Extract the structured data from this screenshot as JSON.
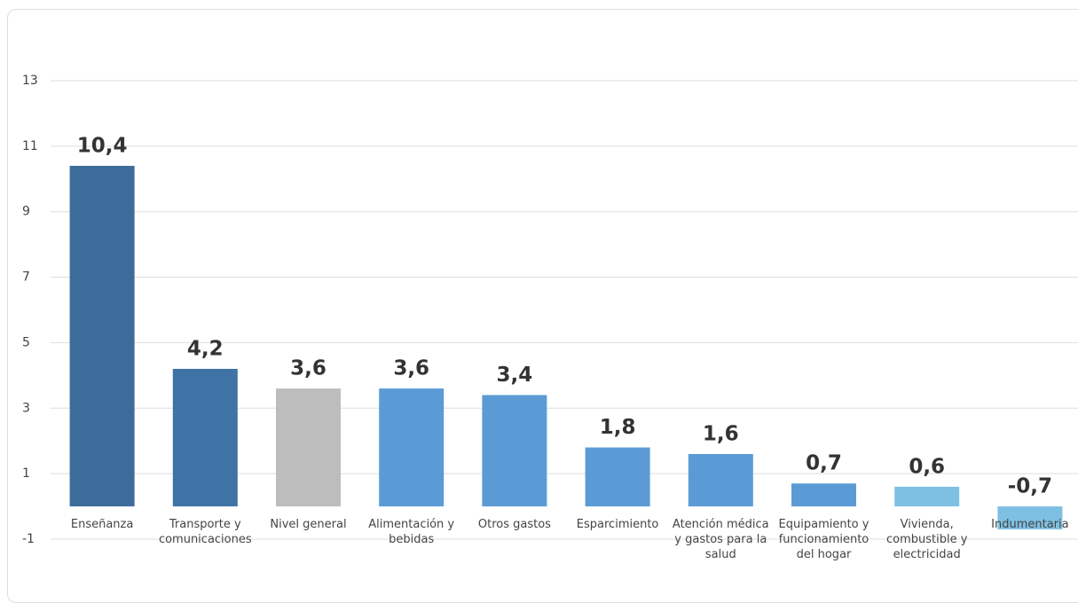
{
  "chart_data": {
    "type": "bar",
    "categories": [
      "Enseñanza",
      "Transporte y comunicaciones",
      "Nivel general",
      "Alimentación y bebidas",
      "Otros gastos",
      "Esparcimiento",
      "Atención médica y gastos para la salud",
      "Equipamiento y funcionamiento del hogar",
      "Vivienda, combustible y electricidad",
      "Indumentaria"
    ],
    "values": [
      10.4,
      4.2,
      3.6,
      3.6,
      3.4,
      1.8,
      1.6,
      0.7,
      0.6,
      -0.7
    ],
    "value_labels": [
      "10,4",
      "4,2",
      "3,6",
      "3,6",
      "3,4",
      "1,8",
      "1,6",
      "0,7",
      "0,6",
      "-0,7"
    ],
    "colors": [
      "#3d6c9b",
      "#3f73a6",
      "#bdbdbd",
      "#5b9bd5",
      "#5b9bd5",
      "#5b9bd5",
      "#5b9bd5",
      "#5b9bd5",
      "#7ec0e3",
      "#7ec0e3"
    ],
    "ylim": [
      -1,
      13
    ],
    "yticks": [
      -1,
      1,
      3,
      5,
      7,
      9,
      11,
      13
    ],
    "grid": true
  }
}
